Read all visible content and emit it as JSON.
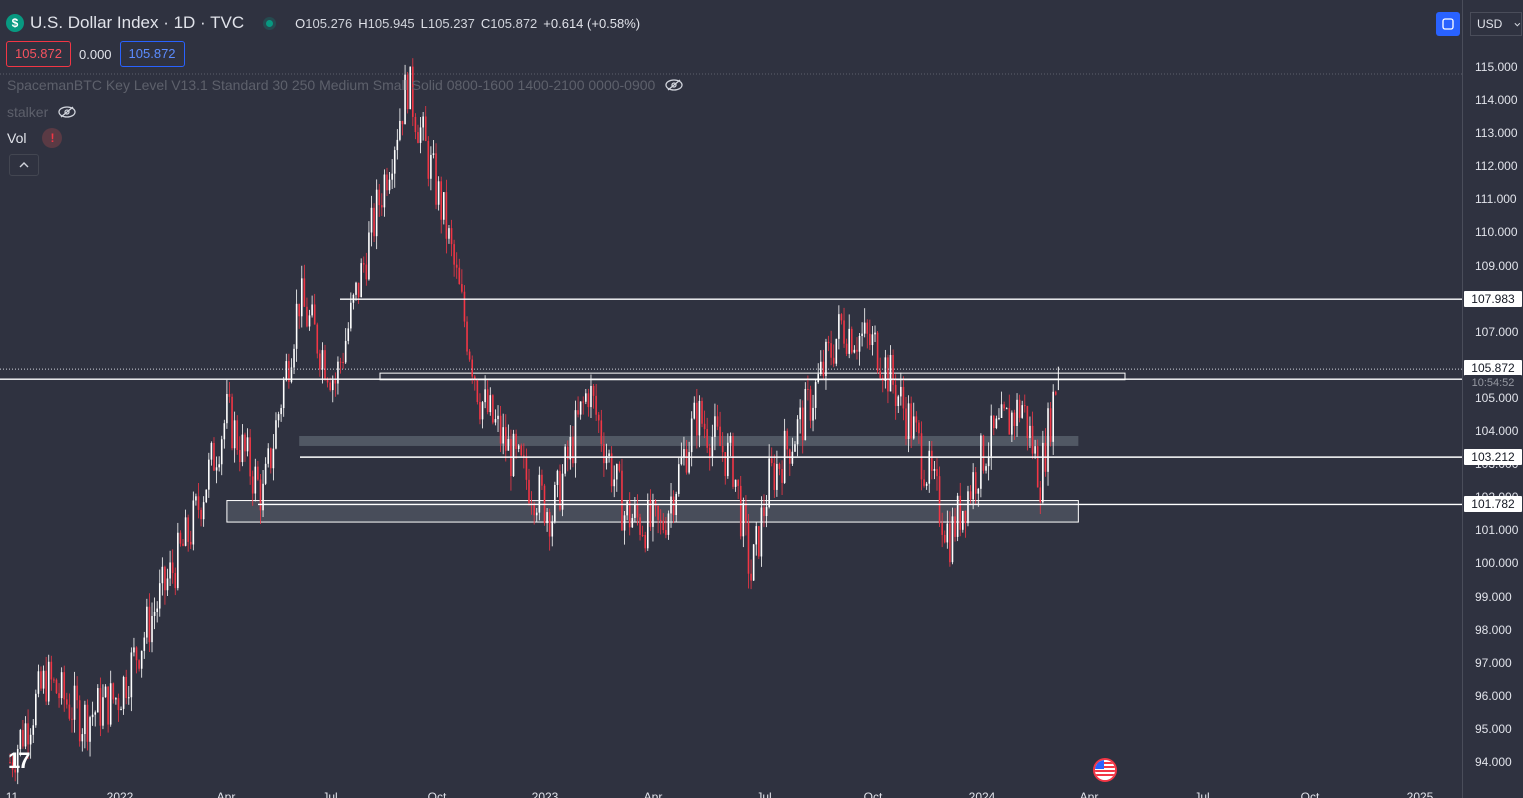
{
  "header": {
    "symbol_title": "U.S. Dollar Index · 1D · TVC",
    "ohlc": {
      "o": "105.276",
      "h": "105.945",
      "l": "105.237",
      "c": "105.872",
      "change": "+0.614 (+0.58%)"
    }
  },
  "price_boxes": {
    "bid": "105.872",
    "spread": "0.000",
    "ask": "105.872"
  },
  "indicators": {
    "key_level": "SpacemanBTC Key Level V13.1 Standard 30 250 Medium Small Solid 0800-1600 1400-2100 0000-0900",
    "stalker": "stalker",
    "vol": "Vol",
    "warn": "!"
  },
  "controls": {
    "currency": "USD"
  },
  "colors": {
    "background": "#2f3240",
    "up_candle": "#ffffff",
    "down_candle": "#f23645",
    "level_line": "#ffffff",
    "zone_fill": "#5d6570"
  },
  "chart_data": {
    "type": "candlestick",
    "title": "U.S. Dollar Index · 1D · TVC",
    "ylim": [
      93.4,
      115.2
    ],
    "yticks": [
      "115.000",
      "114.000",
      "113.000",
      "112.000",
      "111.000",
      "110.000",
      "109.000",
      "108.000",
      "107.000",
      "106.000",
      "105.000",
      "104.000",
      "103.000",
      "102.000",
      "101.000",
      "100.000",
      "99.000",
      "98.000",
      "97.000",
      "96.000",
      "95.000",
      "94.000"
    ],
    "x_labels": [
      "11",
      "2022",
      "Apr",
      "Jul",
      "Oct",
      "2023",
      "Apr",
      "Jul",
      "Oct",
      "2024",
      "Apr",
      "Jul",
      "Oct",
      "2025"
    ],
    "last_price": "105.872",
    "countdown": "10:54:52",
    "levels": [
      {
        "label": "107.983",
        "value": 107.983
      },
      {
        "label": "105.566",
        "value": 105.566
      },
      {
        "label": "103.212",
        "value": 103.212
      },
      {
        "label": "101.782",
        "value": 101.782
      }
    ],
    "zones": [
      {
        "from": 103.55,
        "to": 103.85,
        "start": "2022-07",
        "end": "2024-04"
      },
      {
        "from": 101.25,
        "to": 101.9,
        "start": "2022-05",
        "end": "2024-04"
      }
    ],
    "price_path": [
      [
        "2021-11",
        94.0
      ],
      [
        "2021-12",
        96.5
      ],
      [
        "2022-01",
        95.3
      ],
      [
        "2022-02",
        96.0
      ],
      [
        "2022-03",
        98.6
      ],
      [
        "2022-04",
        101.0
      ],
      [
        "2022-05",
        104.5
      ],
      [
        "2022-06",
        102.0
      ],
      [
        "2022-07",
        108.0
      ],
      [
        "2022-08",
        105.5
      ],
      [
        "2022-09",
        110.0
      ],
      [
        "2022-10",
        114.5
      ],
      [
        "2022-11",
        110.5
      ],
      [
        "2022-12",
        105.0
      ],
      [
        "2023-01",
        103.0
      ],
      [
        "2023-02",
        101.5
      ],
      [
        "2023-03",
        105.3
      ],
      [
        "2023-04",
        101.5
      ],
      [
        "2023-05",
        101.0
      ],
      [
        "2023-06",
        104.5
      ],
      [
        "2023-07",
        103.0
      ],
      [
        "2023-07b",
        99.6
      ],
      [
        "2023-08",
        102.5
      ],
      [
        "2023-09",
        104.5
      ],
      [
        "2023-10",
        107.2
      ],
      [
        "2023-11",
        106.5
      ],
      [
        "2023-12",
        104.0
      ],
      [
        "2024-01",
        100.8
      ],
      [
        "2024-02",
        103.5
      ],
      [
        "2024-03",
        104.8
      ],
      [
        "2024-03b",
        102.6
      ],
      [
        "2024-04",
        105.872
      ]
    ]
  }
}
